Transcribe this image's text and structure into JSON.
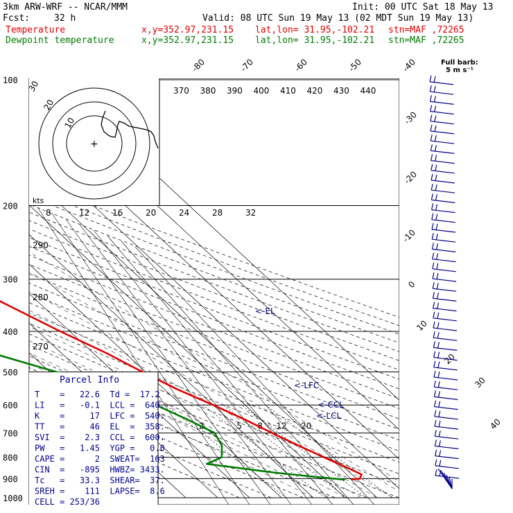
{
  "header": {
    "model": "3km ARW-WRF -- NCAR/MMM",
    "init": "Init: 00 UTC Sat 18 May 13",
    "fcst_label": "Fcst:",
    "fcst_value": "32 h",
    "valid": "Valid: 08 UTC Sun 19 May 13 (02 MDT Sun 19 May 13)",
    "temp_label": "Temperature",
    "dew_label": "Dewpoint temperature",
    "xy": "x,y=352.97,231.15",
    "latlon": "lat,lon= 31.95,-102.21",
    "stn": "stn=MAF ,72265"
  },
  "barb_legend": {
    "line1": "Full barb:",
    "line2": "5 m s⁻¹"
  },
  "colors": {
    "temperature": "#e00000",
    "dewpoint": "#007a00",
    "annotation": "#00008b",
    "grid": "#000000"
  },
  "chart_data": {
    "type": "line",
    "subtype": "skew-T log-p diagram",
    "pressure_levels": [
      100,
      200,
      300,
      400,
      500,
      600,
      700,
      800,
      900,
      1000
    ],
    "isotherm_labels": [
      -80,
      -70,
      -60,
      -50,
      -40,
      -30,
      -20,
      -10,
      0,
      10,
      20,
      30,
      40
    ],
    "theta_labels": [
      370,
      380,
      390,
      400,
      410,
      420,
      430,
      440
    ],
    "mixing_ratio_labels": [
      2,
      5,
      8,
      12,
      20
    ],
    "series": [
      {
        "name": "Temperature",
        "color": "#e00000",
        "points": [
          [
            100,
            -58.5
          ],
          [
            130,
            -58
          ],
          [
            160,
            -55
          ],
          [
            200,
            -52
          ],
          [
            250,
            -46
          ],
          [
            300,
            -38
          ],
          [
            350,
            -30
          ],
          [
            400,
            -23
          ],
          [
            450,
            -16
          ],
          [
            500,
            -11
          ],
          [
            550,
            -6
          ],
          [
            600,
            0
          ],
          [
            650,
            5
          ],
          [
            700,
            9
          ],
          [
            750,
            13
          ],
          [
            800,
            17
          ],
          [
            850,
            21
          ],
          [
            880,
            23
          ],
          [
            900,
            21
          ],
          [
            905,
            18
          ]
        ]
      },
      {
        "name": "Dewpoint temperature",
        "color": "#007a00",
        "points": [
          [
            100,
            -83
          ],
          [
            120,
            -87
          ],
          [
            150,
            -86
          ],
          [
            200,
            -82
          ],
          [
            250,
            -79
          ],
          [
            300,
            -80
          ],
          [
            340,
            -85
          ],
          [
            360,
            -76
          ],
          [
            400,
            -67
          ],
          [
            450,
            -52
          ],
          [
            500,
            -38
          ],
          [
            550,
            -22
          ],
          [
            600,
            -18
          ],
          [
            650,
            -13
          ],
          [
            700,
            -9
          ],
          [
            750,
            -11
          ],
          [
            800,
            -15
          ],
          [
            830,
            -22
          ],
          [
            870,
            -4
          ],
          [
            890,
            7
          ],
          [
            905,
            16
          ]
        ]
      }
    ],
    "annotations": [
      "<-EL",
      "<-LFC",
      "<-CCL",
      "<-LCL"
    ],
    "hodograph": {
      "units": "kts",
      "rings": [
        10,
        20,
        30
      ],
      "speed_axis": [
        8,
        12,
        16,
        20,
        24,
        28,
        32
      ],
      "height_axis": [
        290,
        280,
        270
      ]
    },
    "parcel_info": {
      "title": "Parcel Info",
      "rows": [
        "T    =   22.6  Td =  17.2",
        "LI   =   -0.1  LCL =  640.",
        "K    =     17  LFC =  540.",
        "TT   =     46  EL  =  358.",
        "SVI  =    2.3  CCL =  600.",
        "PW   =   1.45  YGP =   0.0",
        "CAPE =      2  SWEAT=  163",
        "CIN  =   -895  HWBZ= 3433.",
        "Tc   =   33.3  SHEAR=  37.",
        "SREH =    111  LAPSE=  8.6",
        "CELL = 253/36"
      ]
    }
  }
}
